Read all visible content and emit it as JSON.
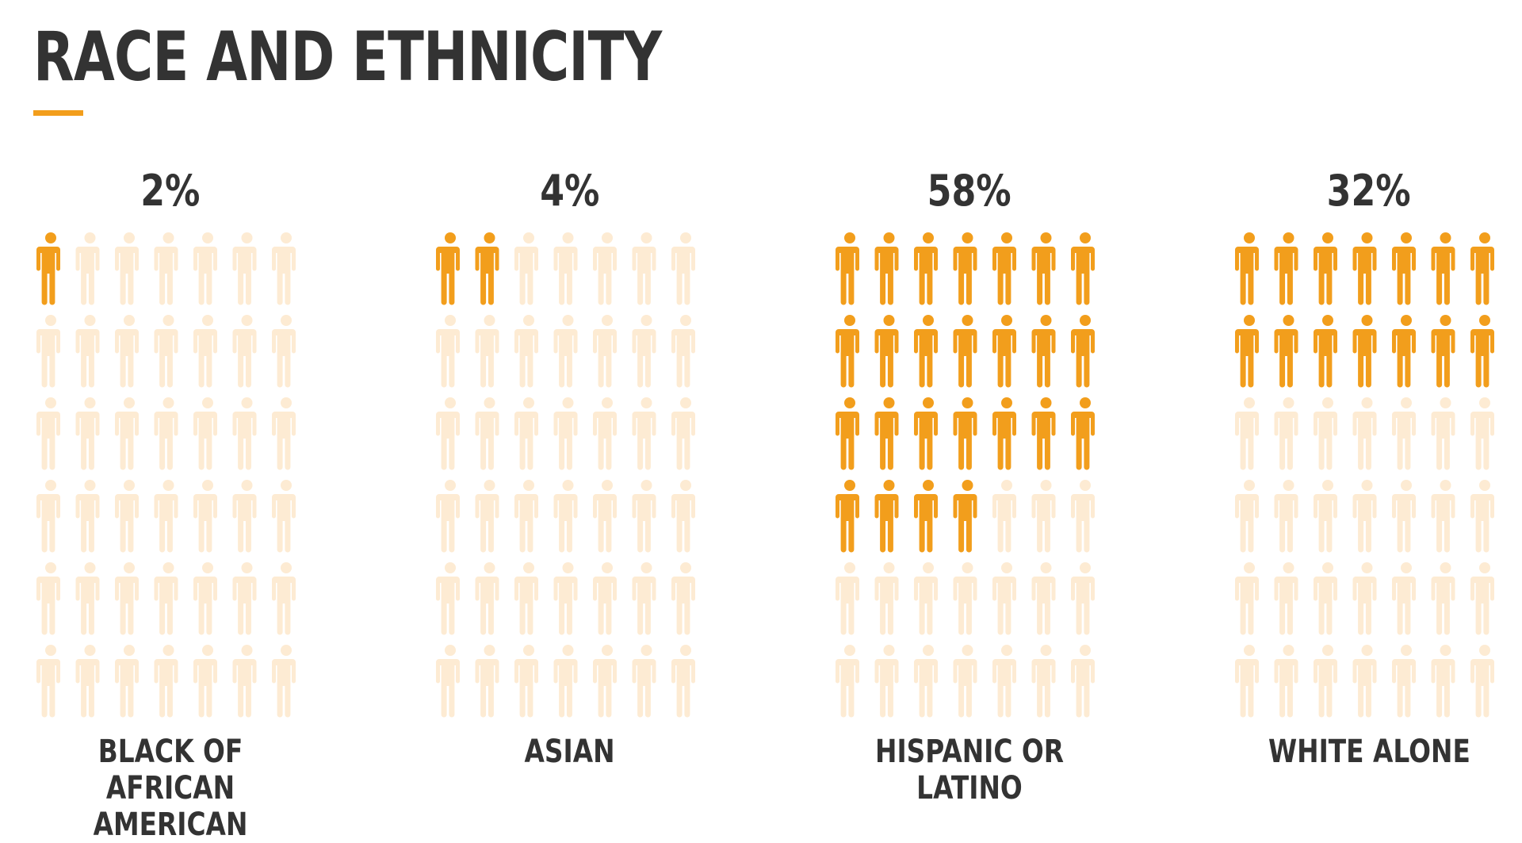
{
  "title": "RACE AND ETHNICITY",
  "colors": {
    "accent": "#f29e1c",
    "faded": "#fdebd3",
    "text": "#333333"
  },
  "icon": "person-icon",
  "chart_data": {
    "type": "pictogram",
    "grid": {
      "columns": 7,
      "rows": 6
    },
    "categories": [
      "BLACK OF AFRICAN AMERICAN",
      "ASIAN",
      "HISPANIC OR LATINO",
      "WHITE ALONE"
    ],
    "values": [
      2,
      4,
      58,
      32
    ],
    "value_labels": [
      "2%",
      "4%",
      "58%",
      "32%"
    ],
    "filled_icons": [
      1,
      2,
      25,
      14
    ],
    "total_icons": 42
  }
}
